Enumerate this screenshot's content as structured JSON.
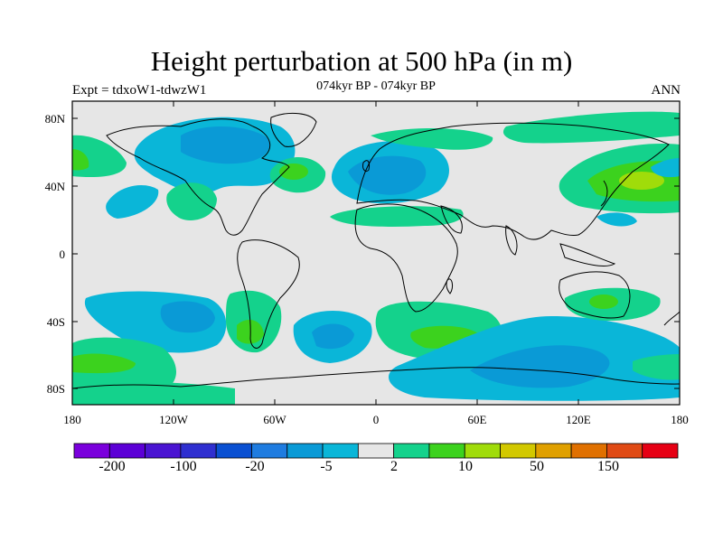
{
  "header": {
    "title": "Height perturbation at 500 hPa (in m)",
    "left_label": "Expt = tdxoW1-tdwzW1",
    "center_label": "074kyr BP - 074kyr BP",
    "right_label": "ANN"
  },
  "axes": {
    "lat_ticks": [
      "80N",
      "40N",
      "0",
      "40S",
      "80S"
    ],
    "lon_ticks": [
      "180",
      "120W",
      "60W",
      "0",
      "60E",
      "120E",
      "180"
    ]
  },
  "colorbar": {
    "colors": [
      "#7a00dc",
      "#5c00d6",
      "#4a14d2",
      "#2f2fd0",
      "#0a50d2",
      "#1f7ce0",
      "#0a9ad6",
      "#0ab6d8",
      "#e6e6e6",
      "#14d28c",
      "#3cd21e",
      "#a0dc0a",
      "#d2c800",
      "#e0a000",
      "#e07000",
      "#e04a14",
      "#e60014"
    ],
    "tick_labels": [
      "-200",
      "-100",
      "-20",
      "-5",
      "2",
      "10",
      "50",
      "150"
    ]
  },
  "legend_colors": {
    "background": "#e6e6e6",
    "neg_light": "#0ab6d8",
    "neg_mid": "#0a9ad6",
    "neg_strong": "#1f7ce0",
    "pos_light": "#14d28c",
    "pos_mid": "#3cd21e",
    "pos_strong": "#a0dc0a"
  }
}
